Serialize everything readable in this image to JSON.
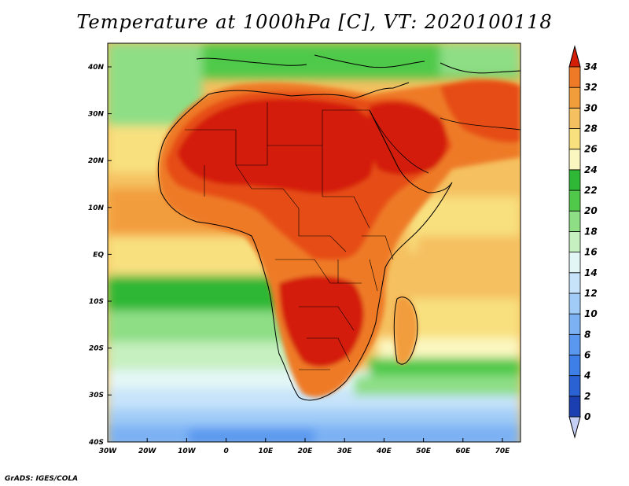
{
  "title": "Temperature at 1000hPa [C], VT: 2020100118",
  "credit": "GrADS: IGES/COLA",
  "lat_labels": [
    "40N",
    "30N",
    "20N",
    "10N",
    "EQ",
    "10S",
    "20S",
    "30S",
    "40S"
  ],
  "lon_labels": [
    "30W",
    "20W",
    "10W",
    "0",
    "10E",
    "20E",
    "30E",
    "40E",
    "50E",
    "60E",
    "70E"
  ],
  "colorbar": {
    "labels": [
      "34",
      "32",
      "30",
      "28",
      "26",
      "24",
      "22",
      "20",
      "18",
      "16",
      "14",
      "12",
      "10",
      "8",
      "6",
      "4",
      "2",
      "0"
    ],
    "colors": [
      "#0d1270",
      "#1b3fb0",
      "#2a62d4",
      "#3d7fe6",
      "#5a98ef",
      "#7cb2f4",
      "#a0ccf7",
      "#c6e3fa",
      "#e3f6f6",
      "#c6f0c0",
      "#8ede86",
      "#50c94a",
      "#2fb736",
      "#fbf7c0",
      "#f8e07f",
      "#f5c060",
      "#f29d3c",
      "#ee7a28",
      "#e64d18",
      "#d41e08"
    ]
  }
}
